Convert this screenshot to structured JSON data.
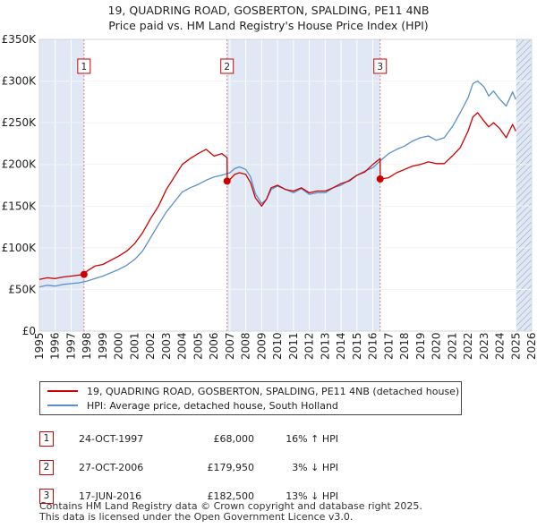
{
  "title": "19, QUADRING ROAD, GOSBERTON, SPALDING, PE11 4NB",
  "subtitle": "Price paid vs. HM Land Registry's House Price Index (HPI)",
  "colors": {
    "property": "#cc0000",
    "hpi": "#5b8fc9",
    "shade": "#dfe8f4",
    "marker_line": "#e08080"
  },
  "chart_data": {
    "type": "line",
    "xlim": [
      1995,
      2026
    ],
    "ylim": [
      0,
      350000
    ],
    "y_ticks": [
      0,
      50000,
      100000,
      150000,
      200000,
      250000,
      300000,
      350000
    ],
    "y_tick_labels": [
      "£0",
      "£50K",
      "£100K",
      "£150K",
      "£200K",
      "£250K",
      "£300K",
      "£350K"
    ],
    "x_ticks": [
      "1995",
      "1996",
      "1997",
      "1998",
      "1999",
      "2000",
      "2001",
      "2002",
      "2003",
      "2004",
      "2005",
      "2006",
      "2007",
      "2008",
      "2009",
      "2010",
      "2011",
      "2012",
      "2013",
      "2014",
      "2015",
      "2016",
      "2017",
      "2018",
      "2019",
      "2020",
      "2021",
      "2022",
      "2023",
      "2024",
      "2025",
      "2026"
    ],
    "shaded_ranges": [
      [
        1995,
        1997.81
      ],
      [
        2006.82,
        2016.46
      ],
      [
        2025.0,
        2026
      ]
    ],
    "hatched_range": [
      2025.0,
      2026
    ],
    "series": [
      {
        "name": "19, QUADRING ROAD, GOSBERTON, SPALDING, PE11 4NB (detached house)",
        "color": "#cc0000",
        "x": [
          1995,
          1995.5,
          1996,
          1996.5,
          1997,
          1997.81,
          1998,
          1998.5,
          1999,
          1999.5,
          2000,
          2000.5,
          2001,
          2001.5,
          2002,
          2002.5,
          2003,
          2003.5,
          2004,
          2004.5,
          2005,
          2005.5,
          2006,
          2006.5,
          2006.82,
          2006.83,
          2007,
          2007.3,
          2007.6,
          2008,
          2008.3,
          2008.6,
          2009,
          2009.3,
          2009.6,
          2010,
          2010.5,
          2011,
          2011.5,
          2012,
          2012.5,
          2013,
          2013.5,
          2014,
          2014.5,
          2015,
          2015.5,
          2016,
          2016.2,
          2016.46,
          2016.47,
          2017,
          2017.5,
          2018,
          2018.5,
          2019,
          2019.5,
          2020,
          2020.5,
          2021,
          2021.5,
          2022,
          2022.3,
          2022.6,
          2023,
          2023.3,
          2023.6,
          2024,
          2024.4,
          2024.8,
          2025.0
        ],
        "values": [
          62000,
          64000,
          63000,
          65000,
          66000,
          68000,
          72000,
          78000,
          80000,
          85000,
          90000,
          96000,
          105000,
          118000,
          135000,
          150000,
          170000,
          185000,
          200000,
          207000,
          213000,
          218000,
          210000,
          213000,
          208000,
          179950,
          182000,
          188000,
          190000,
          188000,
          178000,
          160000,
          150000,
          158000,
          172000,
          175000,
          170000,
          168000,
          172000,
          166000,
          168000,
          168000,
          172000,
          177000,
          180000,
          187000,
          191000,
          200000,
          203000,
          207000,
          182500,
          184000,
          190000,
          194000,
          198000,
          200000,
          203000,
          201000,
          201000,
          210000,
          220000,
          240000,
          257000,
          262000,
          252000,
          245000,
          250000,
          243000,
          232000,
          248000,
          240000
        ]
      },
      {
        "name": "HPI: Average price, detached house, South Holland",
        "color": "#5b8fc9",
        "x": [
          1995,
          1995.5,
          1996,
          1996.5,
          1997,
          1997.5,
          1998,
          1998.5,
          1999,
          1999.5,
          2000,
          2000.5,
          2001,
          2001.5,
          2002,
          2002.5,
          2003,
          2003.5,
          2004,
          2004.5,
          2005,
          2005.5,
          2006,
          2006.5,
          2007,
          2007.3,
          2007.6,
          2008,
          2008.3,
          2008.6,
          2009,
          2009.3,
          2009.6,
          2010,
          2010.5,
          2011,
          2011.5,
          2012,
          2012.5,
          2013,
          2013.5,
          2014,
          2014.5,
          2015,
          2015.5,
          2016,
          2016.5,
          2017,
          2017.5,
          2018,
          2018.5,
          2019,
          2019.5,
          2020,
          2020.5,
          2021,
          2021.5,
          2022,
          2022.3,
          2022.6,
          2023,
          2023.3,
          2023.6,
          2024,
          2024.4,
          2024.8,
          2025.0
        ],
        "values": [
          53000,
          55000,
          54000,
          56000,
          57000,
          58000,
          60000,
          63000,
          66000,
          70000,
          74000,
          79000,
          86000,
          96000,
          112000,
          128000,
          143000,
          155000,
          167000,
          172000,
          176000,
          181000,
          185000,
          187000,
          190000,
          195000,
          197000,
          194000,
          185000,
          165000,
          153000,
          158000,
          170000,
          174000,
          170000,
          166000,
          171000,
          164000,
          166000,
          166000,
          172000,
          175000,
          181000,
          187000,
          192000,
          196000,
          205000,
          213000,
          218000,
          222000,
          228000,
          232000,
          234000,
          229000,
          232000,
          245000,
          262000,
          280000,
          297000,
          300000,
          293000,
          282000,
          288000,
          278000,
          270000,
          287000,
          278000
        ]
      }
    ],
    "sales": [
      {
        "n": "1",
        "x": 1997.81,
        "y": 68000
      },
      {
        "n": "2",
        "x": 2006.82,
        "y": 179950
      },
      {
        "n": "3",
        "x": 2016.46,
        "y": 182500
      }
    ]
  },
  "legend": {
    "property_label": "19, QUADRING ROAD, GOSBERTON, SPALDING, PE11 4NB (detached house)",
    "hpi_label": "HPI: Average price, detached house, South Holland"
  },
  "transactions": [
    {
      "num": "1",
      "date": "24-OCT-1997",
      "price": "£68,000",
      "hpi": "16% ↑ HPI"
    },
    {
      "num": "2",
      "date": "27-OCT-2006",
      "price": "£179,950",
      "hpi": "3% ↓ HPI"
    },
    {
      "num": "3",
      "date": "17-JUN-2016",
      "price": "£182,500",
      "hpi": "13% ↓ HPI"
    }
  ],
  "footer": {
    "line1": "Contains HM Land Registry data © Crown copyright and database right 2025.",
    "line2": "This data is licensed under the Open Government Licence v3.0."
  }
}
